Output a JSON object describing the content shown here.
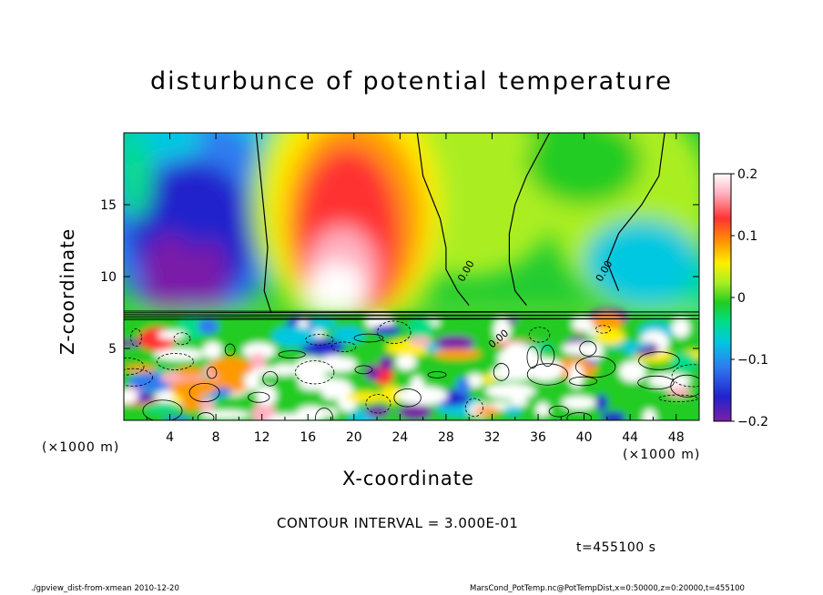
{
  "chart_data": {
    "type": "heatmap",
    "title": "disturbunce of potential temperature",
    "xlabel": "X-coordinate",
    "ylabel": "Z-coordinate",
    "x_units": "(×1000 m)",
    "x_units_right": "(×1000 m)",
    "y_units": "(×1000 m)",
    "xlim": [
      0,
      50
    ],
    "ylim": [
      0,
      20
    ],
    "x_ticks": [
      "4",
      "8",
      "12",
      "16",
      "20",
      "24",
      "28",
      "32",
      "36",
      "40",
      "44",
      "48"
    ],
    "y_ticks": [
      "5",
      "10",
      "15"
    ],
    "colorbar": {
      "range": [
        -0.2,
        0.2
      ],
      "tick_labels": [
        "0.2",
        "0.1",
        "0",
        "-0.1",
        "-0.2"
      ]
    },
    "contour_labels": [
      "0.00",
      "0.00",
      "0.00"
    ],
    "features": [
      {
        "kind": "negative-anomaly",
        "x": 6,
        "z": 13,
        "peak": -0.2
      },
      {
        "kind": "positive-anomaly",
        "x": 19,
        "z": 12,
        "peak": 0.2
      },
      {
        "kind": "turbulent-layer",
        "z_range": [
          0,
          7
        ]
      }
    ]
  },
  "annotations": {
    "contour_interval": "CONTOUR INTERVAL = 3.000E-01",
    "time": "t=455100 s"
  },
  "footer": {
    "left": "./gpview_dist-from-xmean  2010-12-20",
    "right": "MarsCond_PotTemp.nc@PotTempDist,x=0:50000,z=0:20000,t=455100"
  },
  "colors": {
    "scale": [
      "#7a1fa8",
      "#2222cc",
      "#2f7cf0",
      "#00c8e0",
      "#00dd88",
      "#22cc22",
      "#aaee22",
      "#ffee00",
      "#ff9900",
      "#ff3333",
      "#ffb0c0",
      "#ffffff"
    ]
  }
}
